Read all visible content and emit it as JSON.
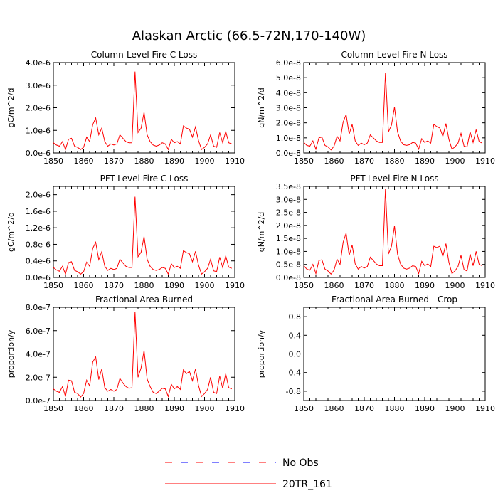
{
  "title": "Alaskan Arctic (66.5-72N,170-140W)",
  "chart_data": [
    {
      "type": "line",
      "title": "Column-Level Fire C Loss",
      "ylabel": "gC/m^2/d",
      "xlim": [
        1850,
        1910
      ],
      "ylim": [
        0,
        4e-06
      ],
      "xticks": [
        1850,
        1860,
        1870,
        1880,
        1890,
        1900,
        1910
      ],
      "yticks": [
        0,
        1e-06,
        2e-06,
        3e-06,
        4e-06
      ],
      "yticklabels": [
        "0.0e-6",
        "1.0e-6",
        "2.0e-6",
        "3.0e-6",
        "4.0e-6"
      ],
      "x": [
        1850,
        1851,
        1852,
        1853,
        1854,
        1855,
        1856,
        1857,
        1858,
        1859,
        1860,
        1861,
        1862,
        1863,
        1864,
        1865,
        1866,
        1867,
        1868,
        1869,
        1870,
        1871,
        1872,
        1873,
        1874,
        1875,
        1876,
        1877,
        1878,
        1879,
        1880,
        1881,
        1882,
        1883,
        1884,
        1885,
        1886,
        1887,
        1888,
        1889,
        1890,
        1891,
        1892,
        1893,
        1894,
        1895,
        1896,
        1897,
        1898,
        1899,
        1900,
        1901,
        1902,
        1903,
        1904,
        1905,
        1906,
        1907,
        1908,
        1909
      ],
      "series": [
        {
          "color": "#ff0000",
          "values": [
            4.5e-07,
            3.5e-07,
            3e-07,
            5e-07,
            1.5e-07,
            6e-07,
            6.5e-07,
            3e-07,
            2.5e-07,
            1.5e-07,
            2.5e-07,
            7e-07,
            5e-07,
            1.25e-06,
            1.55e-06,
            8e-07,
            1.1e-06,
            5e-07,
            3e-07,
            4e-07,
            3.5e-07,
            4e-07,
            8e-07,
            6.5e-07,
            5e-07,
            4.5e-07,
            4.5e-07,
            3.6e-06,
            9e-07,
            1.1e-06,
            1.8e-06,
            8e-07,
            5e-07,
            3.5e-07,
            3e-07,
            3.5e-07,
            4.5e-07,
            4e-07,
            1.5e-07,
            6e-07,
            4.5e-07,
            5e-07,
            4e-07,
            1.2e-06,
            1.1e-06,
            1.05e-06,
            7e-07,
            1.15e-06,
            5.5e-07,
            1.5e-07,
            2.5e-07,
            4e-07,
            8e-07,
            3e-07,
            2.5e-07,
            9e-07,
            4.5e-07,
            9.5e-07,
            4.5e-07,
            4e-07
          ]
        }
      ]
    },
    {
      "type": "line",
      "title": "Column-Level Fire N Loss",
      "ylabel": "gN/m^2/d",
      "xlim": [
        1850,
        1910
      ],
      "ylim": [
        0,
        6e-08
      ],
      "xticks": [
        1850,
        1860,
        1870,
        1880,
        1890,
        1900,
        1910
      ],
      "yticks": [
        0,
        1e-08,
        2e-08,
        3e-08,
        4e-08,
        5e-08,
        6e-08
      ],
      "yticklabels": [
        "0.0e-8",
        "1.0e-8",
        "2.0e-8",
        "3.0e-8",
        "4.0e-8",
        "5.0e-8",
        "6.0e-8"
      ],
      "x": [
        1850,
        1851,
        1852,
        1853,
        1854,
        1855,
        1856,
        1857,
        1858,
        1859,
        1860,
        1861,
        1862,
        1863,
        1864,
        1865,
        1866,
        1867,
        1868,
        1869,
        1870,
        1871,
        1872,
        1873,
        1874,
        1875,
        1876,
        1877,
        1878,
        1879,
        1880,
        1881,
        1882,
        1883,
        1884,
        1885,
        1886,
        1887,
        1888,
        1889,
        1890,
        1891,
        1892,
        1893,
        1894,
        1895,
        1896,
        1897,
        1898,
        1899,
        1900,
        1901,
        1902,
        1903,
        1904,
        1905,
        1906,
        1907,
        1908,
        1909
      ],
      "series": [
        {
          "color": "#ff0000",
          "values": [
            7e-09,
            5e-09,
            4.5e-09,
            8e-09,
            2.5e-09,
            1e-08,
            1.05e-08,
            5e-09,
            4e-09,
            2e-09,
            4.5e-09,
            1.1e-08,
            8e-09,
            2.05e-08,
            2.55e-08,
            1.25e-08,
            1.9e-08,
            8e-09,
            5e-09,
            6.5e-09,
            5.5e-09,
            6.5e-09,
            1.2e-08,
            1e-08,
            8e-09,
            7e-09,
            7e-09,
            5.3e-08,
            1.4e-08,
            1.85e-08,
            3.05e-08,
            1.4e-08,
            8e-09,
            5.5e-09,
            5e-09,
            5.5e-09,
            7e-09,
            6.5e-09,
            2.5e-09,
            9.5e-09,
            7e-09,
            8e-09,
            6.5e-09,
            1.9e-08,
            1.75e-08,
            1.65e-08,
            1.1e-08,
            1.95e-08,
            9e-09,
            2.5e-09,
            4e-09,
            6.5e-09,
            1.3e-08,
            4.5e-09,
            4e-09,
            1.4e-08,
            7e-09,
            1.55e-08,
            7.5e-09,
            6.5e-09
          ]
        }
      ]
    },
    {
      "type": "line",
      "title": "PFT-Level Fire C Loss",
      "ylabel": "gC/m^2/d",
      "xlim": [
        1850,
        1910
      ],
      "ylim": [
        0,
        2.2e-06
      ],
      "xticks": [
        1850,
        1860,
        1870,
        1880,
        1890,
        1900,
        1910
      ],
      "yticks": [
        0,
        4e-07,
        8e-07,
        1.2e-06,
        1.6e-06,
        2e-06
      ],
      "yticklabels": [
        "0.0e-6",
        "0.4e-6",
        "0.8e-6",
        "1.2e-6",
        "1.6e-6",
        "2.0e-6"
      ],
      "x": [
        1850,
        1851,
        1852,
        1853,
        1854,
        1855,
        1856,
        1857,
        1858,
        1859,
        1860,
        1861,
        1862,
        1863,
        1864,
        1865,
        1866,
        1867,
        1868,
        1869,
        1870,
        1871,
        1872,
        1873,
        1874,
        1875,
        1876,
        1877,
        1878,
        1879,
        1880,
        1881,
        1882,
        1883,
        1884,
        1885,
        1886,
        1887,
        1888,
        1889,
        1890,
        1891,
        1892,
        1893,
        1894,
        1895,
        1896,
        1897,
        1898,
        1899,
        1900,
        1901,
        1902,
        1903,
        1904,
        1905,
        1906,
        1907,
        1908,
        1909
      ],
      "series": [
        {
          "color": "#ff0000",
          "values": [
            2.4e-07,
            1.8e-07,
            1.5e-07,
            2.7e-07,
            8e-08,
            3.6e-07,
            3.8e-07,
            1.7e-07,
            1.4e-07,
            8e-08,
            1.4e-07,
            3.7e-07,
            2.7e-07,
            7e-07,
            8.5e-07,
            4.3e-07,
            6.2e-07,
            2.7e-07,
            1.7e-07,
            2.2e-07,
            1.9e-07,
            2.2e-07,
            4.4e-07,
            3.5e-07,
            2.7e-07,
            2.4e-07,
            2.4e-07,
            1.95e-06,
            5e-07,
            6.1e-07,
            9.9e-07,
            4.4e-07,
            2.7e-07,
            1.9e-07,
            1.7e-07,
            1.9e-07,
            2.4e-07,
            2.2e-07,
            8e-08,
            3.3e-07,
            2.4e-07,
            2.7e-07,
            2.2e-07,
            6.5e-07,
            6e-07,
            5.7e-07,
            3.8e-07,
            6.3e-07,
            3e-07,
            8e-08,
            1.4e-07,
            2.2e-07,
            4.4e-07,
            1.6e-07,
            1.4e-07,
            4.9e-07,
            2.4e-07,
            5.2e-07,
            2.5e-07,
            2.2e-07
          ]
        }
      ]
    },
    {
      "type": "line",
      "title": "PFT-Level Fire N Loss",
      "ylabel": "gN/m^2/d",
      "xlim": [
        1850,
        1910
      ],
      "ylim": [
        0,
        3.5e-08
      ],
      "xticks": [
        1850,
        1860,
        1870,
        1880,
        1890,
        1900,
        1910
      ],
      "yticks": [
        0,
        5e-09,
        1e-08,
        1.5e-08,
        2e-08,
        2.5e-08,
        3e-08,
        3.5e-08
      ],
      "yticklabels": [
        "0.0e-8",
        "0.5e-8",
        "1.0e-8",
        "1.5e-8",
        "2.0e-8",
        "2.5e-8",
        "3.0e-8",
        "3.5e-8"
      ],
      "x": [
        1850,
        1851,
        1852,
        1853,
        1854,
        1855,
        1856,
        1857,
        1858,
        1859,
        1860,
        1861,
        1862,
        1863,
        1864,
        1865,
        1866,
        1867,
        1868,
        1869,
        1870,
        1871,
        1872,
        1873,
        1874,
        1875,
        1876,
        1877,
        1878,
        1879,
        1880,
        1881,
        1882,
        1883,
        1884,
        1885,
        1886,
        1887,
        1888,
        1889,
        1890,
        1891,
        1892,
        1893,
        1894,
        1895,
        1896,
        1897,
        1898,
        1899,
        1900,
        1901,
        1902,
        1903,
        1904,
        1905,
        1906,
        1907,
        1908,
        1909
      ],
      "series": [
        {
          "color": "#ff0000",
          "values": [
            4.5e-09,
            3.2e-09,
            2.8e-09,
            5e-09,
            1.5e-09,
            6.5e-09,
            6.8e-09,
            3.2e-09,
            2.5e-09,
            1.3e-09,
            2.8e-09,
            7e-09,
            5e-09,
            1.35e-08,
            1.7e-08,
            8.5e-09,
            1.25e-08,
            5.2e-09,
            3.2e-09,
            4.2e-09,
            3.6e-09,
            4.2e-09,
            7.8e-09,
            6.5e-09,
            5.2e-09,
            4.5e-09,
            4.5e-09,
            3.4e-08,
            9e-09,
            1.2e-08,
            1.98e-08,
            9e-09,
            5.2e-09,
            3.6e-09,
            3.2e-09,
            3.6e-09,
            4.5e-09,
            4.2e-09,
            1.5e-09,
            6.2e-09,
            4.5e-09,
            5.2e-09,
            4.2e-09,
            1.2e-08,
            1.15e-08,
            1.2e-08,
            8e-09,
            1.3e-08,
            5.8e-09,
            1.5e-09,
            2.5e-09,
            4.2e-09,
            8.5e-09,
            3e-09,
            2.5e-09,
            9e-09,
            4.5e-09,
            1e-08,
            5e-09,
            4.5e-09
          ]
        }
      ]
    },
    {
      "type": "line",
      "title": "Fractional Area Burned",
      "ylabel": "proportion/y",
      "xlim": [
        1850,
        1910
      ],
      "ylim": [
        0,
        8e-07
      ],
      "xticks": [
        1850,
        1860,
        1870,
        1880,
        1890,
        1900,
        1910
      ],
      "yticks": [
        0,
        2e-07,
        4e-07,
        6e-07,
        8e-07
      ],
      "yticklabels": [
        "0.0e-7",
        "2.0e-7",
        "4.0e-7",
        "6.0e-7",
        "8.0e-7"
      ],
      "x": [
        1850,
        1851,
        1852,
        1853,
        1854,
        1855,
        1856,
        1857,
        1858,
        1859,
        1860,
        1861,
        1862,
        1863,
        1864,
        1865,
        1866,
        1867,
        1868,
        1869,
        1870,
        1871,
        1872,
        1873,
        1874,
        1875,
        1876,
        1877,
        1878,
        1879,
        1880,
        1881,
        1882,
        1883,
        1884,
        1885,
        1886,
        1887,
        1888,
        1889,
        1890,
        1891,
        1892,
        1893,
        1894,
        1895,
        1896,
        1897,
        1898,
        1899,
        1900,
        1901,
        1902,
        1903,
        1904,
        1905,
        1906,
        1907,
        1908,
        1909
      ],
      "series": [
        {
          "color": "#ff0000",
          "values": [
            1e-07,
            8e-08,
            7e-08,
            1.2e-07,
            3.5e-08,
            1.75e-07,
            1.7e-07,
            7e-08,
            6e-08,
            3e-08,
            6e-08,
            1.75e-07,
            1.25e-07,
            3.3e-07,
            3.75e-07,
            1.8e-07,
            2.7e-07,
            1.1e-07,
            8e-08,
            9.5e-08,
            8e-08,
            9.5e-08,
            1.9e-07,
            1.5e-07,
            1.2e-07,
            1.05e-07,
            1.1e-07,
            7.6e-07,
            2e-07,
            2.8e-07,
            4.3e-07,
            1.85e-07,
            1.2e-07,
            7e-08,
            6e-08,
            8e-08,
            1.05e-07,
            1e-07,
            3.5e-08,
            1.4e-07,
            1e-07,
            1.2e-07,
            9.5e-08,
            2.65e-07,
            2.3e-07,
            2.5e-07,
            1.7e-07,
            2.7e-07,
            1.3e-07,
            3.5e-08,
            6e-08,
            9.5e-08,
            2e-07,
            7e-08,
            6e-08,
            2.1e-07,
            1.05e-07,
            2.3e-07,
            1.1e-07,
            1e-07
          ]
        }
      ]
    },
    {
      "type": "line",
      "title": "Fractional Area Burned - Crop",
      "ylabel": "proportion/y",
      "xlim": [
        1850,
        1910
      ],
      "ylim": [
        -1,
        1
      ],
      "xticks": [
        1850,
        1860,
        1870,
        1880,
        1890,
        1900,
        1910
      ],
      "yticks": [
        -0.8,
        -0.4,
        0,
        0.4,
        0.8
      ],
      "yticklabels": [
        "-0.8",
        "-0.4",
        "0.0",
        "0.4",
        "0.8"
      ],
      "x": [
        1850,
        1909
      ],
      "series": [
        {
          "color": "#ff0000",
          "values": [
            0,
            0
          ]
        }
      ]
    }
  ],
  "legend": {
    "placement": "bottom-center",
    "items": [
      {
        "label": "No Obs",
        "style": "dashed",
        "colors": [
          "#ff0000",
          "#0000ff"
        ]
      },
      {
        "label": "20TR_161",
        "style": "solid",
        "colors": [
          "#ff0000"
        ]
      }
    ]
  }
}
